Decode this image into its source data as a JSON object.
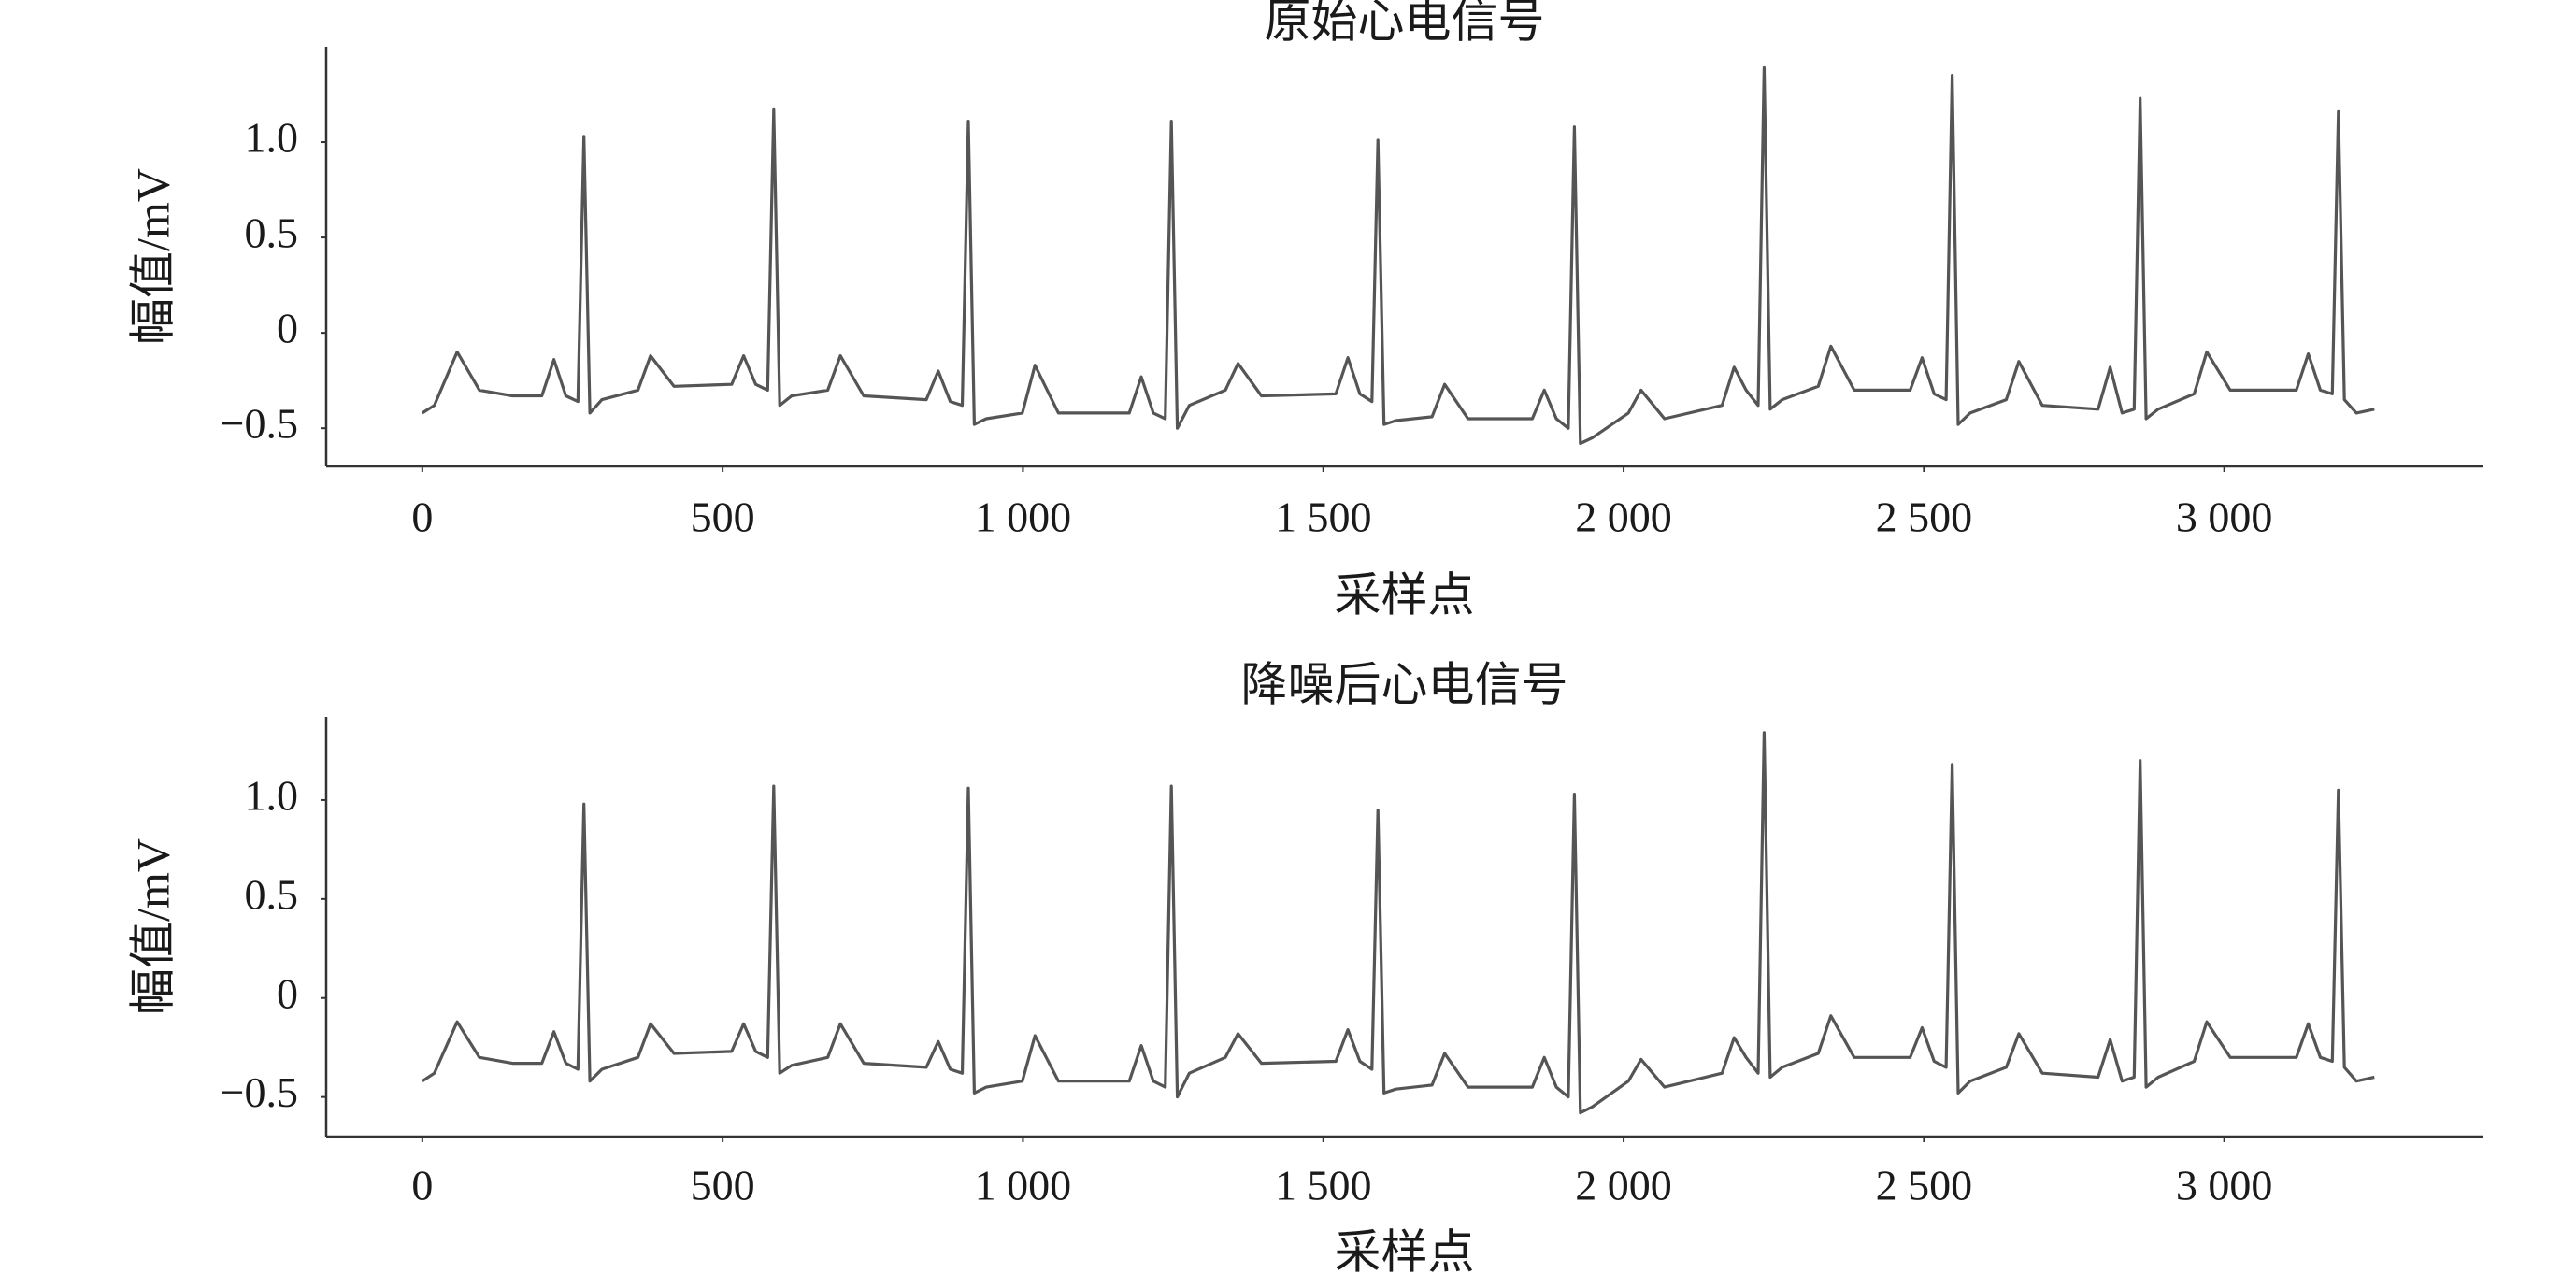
{
  "chart_data": [
    {
      "type": "line",
      "title": "原始心电信号",
      "x_label": "采样点",
      "y_label": "幅值/mV",
      "x": [
        0,
        20,
        58,
        95,
        150,
        199,
        219,
        239,
        259,
        269,
        279,
        299,
        359,
        380,
        419,
        515,
        535,
        555,
        575,
        585,
        595,
        615,
        675,
        696,
        735,
        839,
        859,
        879,
        899,
        909,
        919,
        939,
        999,
        1020,
        1059,
        1177,
        1197,
        1217,
        1237,
        1247,
        1257,
        1277,
        1337,
        1358,
        1397,
        1521,
        1541,
        1561,
        1581,
        1591,
        1601,
        1621,
        1681,
        1702,
        1741,
        1848,
        1868,
        1888,
        1908,
        1918,
        1928,
        1948,
        2008,
        2029,
        2068,
        2164,
        2184,
        2204,
        2224,
        2234,
        2244,
        2264,
        2324,
        2345,
        2384,
        2477,
        2497,
        2517,
        2537,
        2547,
        2557,
        2577,
        2637,
        2658,
        2697,
        2790,
        2810,
        2830,
        2850,
        2860,
        2870,
        2890,
        2950,
        2971,
        3010,
        3120,
        3140,
        3160,
        3180,
        3190,
        3200,
        3220,
        3250
      ],
      "series": [
        {
          "name": "原始心电信号",
          "color": "#555555",
          "values": [
            -0.42,
            -0.38,
            -0.1,
            -0.3,
            -0.33,
            -0.33,
            -0.14,
            -0.33,
            -0.36,
            1.03,
            -0.42,
            -0.35,
            -0.3,
            -0.12,
            -0.28,
            -0.27,
            -0.12,
            -0.27,
            -0.3,
            1.17,
            -0.38,
            -0.33,
            -0.3,
            -0.12,
            -0.33,
            -0.35,
            -0.2,
            -0.36,
            -0.38,
            1.11,
            -0.48,
            -0.45,
            -0.42,
            -0.17,
            -0.42,
            -0.42,
            -0.23,
            -0.42,
            -0.45,
            1.11,
            -0.5,
            -0.38,
            -0.3,
            -0.16,
            -0.33,
            -0.32,
            -0.13,
            -0.32,
            -0.36,
            1.01,
            -0.48,
            -0.46,
            -0.44,
            -0.27,
            -0.45,
            -0.45,
            -0.3,
            -0.45,
            -0.5,
            1.08,
            -0.58,
            -0.55,
            -0.42,
            -0.3,
            -0.45,
            -0.38,
            -0.18,
            -0.3,
            -0.38,
            1.39,
            -0.4,
            -0.35,
            -0.28,
            -0.07,
            -0.3,
            -0.3,
            -0.13,
            -0.32,
            -0.35,
            1.35,
            -0.48,
            -0.42,
            -0.35,
            -0.15,
            -0.38,
            -0.4,
            -0.18,
            -0.42,
            -0.4,
            1.23,
            -0.45,
            -0.4,
            -0.32,
            -0.1,
            -0.3,
            -0.3,
            -0.11,
            -0.3,
            -0.32,
            1.16,
            -0.35,
            -0.42,
            -0.4
          ]
        }
      ],
      "xlim": [
        -160,
        3430
      ],
      "ylim": [
        -0.7,
        1.5
      ],
      "xticks": [
        0,
        500,
        {
          "value": 1000,
          "label": "1 000"
        },
        {
          "value": 1500,
          "label": "1 500"
        },
        {
          "value": 2000,
          "label": "2 000"
        },
        {
          "value": 2500,
          "label": "2 500"
        },
        {
          "value": 3000,
          "label": "3 000"
        }
      ],
      "yticks": [
        {
          "value": -0.5,
          "label": "−0.5"
        },
        0,
        0.5,
        {
          "value": 1,
          "label": "1.0"
        }
      ],
      "grid": false
    },
    {
      "type": "line",
      "title": "降噪后心电信号",
      "x_label": "采样点",
      "y_label": "幅值/mV",
      "x": [
        0,
        20,
        58,
        95,
        150,
        199,
        219,
        239,
        259,
        269,
        279,
        299,
        359,
        380,
        419,
        515,
        535,
        555,
        575,
        585,
        595,
        615,
        675,
        696,
        735,
        839,
        859,
        879,
        899,
        909,
        919,
        939,
        999,
        1020,
        1059,
        1177,
        1197,
        1217,
        1237,
        1247,
        1257,
        1277,
        1337,
        1358,
        1397,
        1521,
        1541,
        1561,
        1581,
        1591,
        1601,
        1621,
        1681,
        1702,
        1741,
        1848,
        1868,
        1888,
        1908,
        1918,
        1928,
        1948,
        2008,
        2029,
        2068,
        2164,
        2184,
        2204,
        2224,
        2234,
        2244,
        2264,
        2324,
        2345,
        2384,
        2477,
        2497,
        2517,
        2537,
        2547,
        2557,
        2577,
        2637,
        2658,
        2697,
        2790,
        2810,
        2830,
        2850,
        2860,
        2870,
        2890,
        2950,
        2971,
        3010,
        3120,
        3140,
        3160,
        3180,
        3190,
        3200,
        3220,
        3250
      ],
      "series": [
        {
          "name": "降噪后心电信号",
          "color": "#555555",
          "values": [
            -0.42,
            -0.38,
            -0.12,
            -0.3,
            -0.33,
            -0.33,
            -0.17,
            -0.33,
            -0.36,
            0.98,
            -0.42,
            -0.36,
            -0.3,
            -0.13,
            -0.28,
            -0.27,
            -0.13,
            -0.27,
            -0.3,
            1.07,
            -0.38,
            -0.34,
            -0.3,
            -0.13,
            -0.33,
            -0.35,
            -0.22,
            -0.36,
            -0.38,
            1.06,
            -0.48,
            -0.45,
            -0.42,
            -0.19,
            -0.42,
            -0.42,
            -0.24,
            -0.42,
            -0.45,
            1.07,
            -0.5,
            -0.38,
            -0.3,
            -0.18,
            -0.33,
            -0.32,
            -0.16,
            -0.32,
            -0.36,
            0.95,
            -0.48,
            -0.46,
            -0.44,
            -0.28,
            -0.45,
            -0.45,
            -0.3,
            -0.45,
            -0.5,
            1.03,
            -0.58,
            -0.55,
            -0.42,
            -0.31,
            -0.45,
            -0.38,
            -0.2,
            -0.3,
            -0.38,
            1.34,
            -0.4,
            -0.35,
            -0.28,
            -0.09,
            -0.3,
            -0.3,
            -0.15,
            -0.32,
            -0.35,
            1.18,
            -0.48,
            -0.42,
            -0.35,
            -0.18,
            -0.38,
            -0.4,
            -0.21,
            -0.42,
            -0.4,
            1.2,
            -0.45,
            -0.4,
            -0.32,
            -0.12,
            -0.3,
            -0.3,
            -0.13,
            -0.3,
            -0.32,
            1.05,
            -0.35,
            -0.42,
            -0.4
          ]
        }
      ],
      "xlim": [
        -160,
        3430
      ],
      "ylim": [
        -0.7,
        1.42
      ],
      "xticks": [
        0,
        500,
        {
          "value": 1000,
          "label": "1 000"
        },
        {
          "value": 1500,
          "label": "1 500"
        },
        {
          "value": 2000,
          "label": "2 000"
        },
        {
          "value": 2500,
          "label": "2 500"
        },
        {
          "value": 3000,
          "label": "3 000"
        }
      ],
      "yticks": [
        {
          "value": -0.5,
          "label": "−0.5"
        },
        0,
        0.5,
        {
          "value": 1,
          "label": "1.0"
        }
      ],
      "grid": false
    }
  ]
}
